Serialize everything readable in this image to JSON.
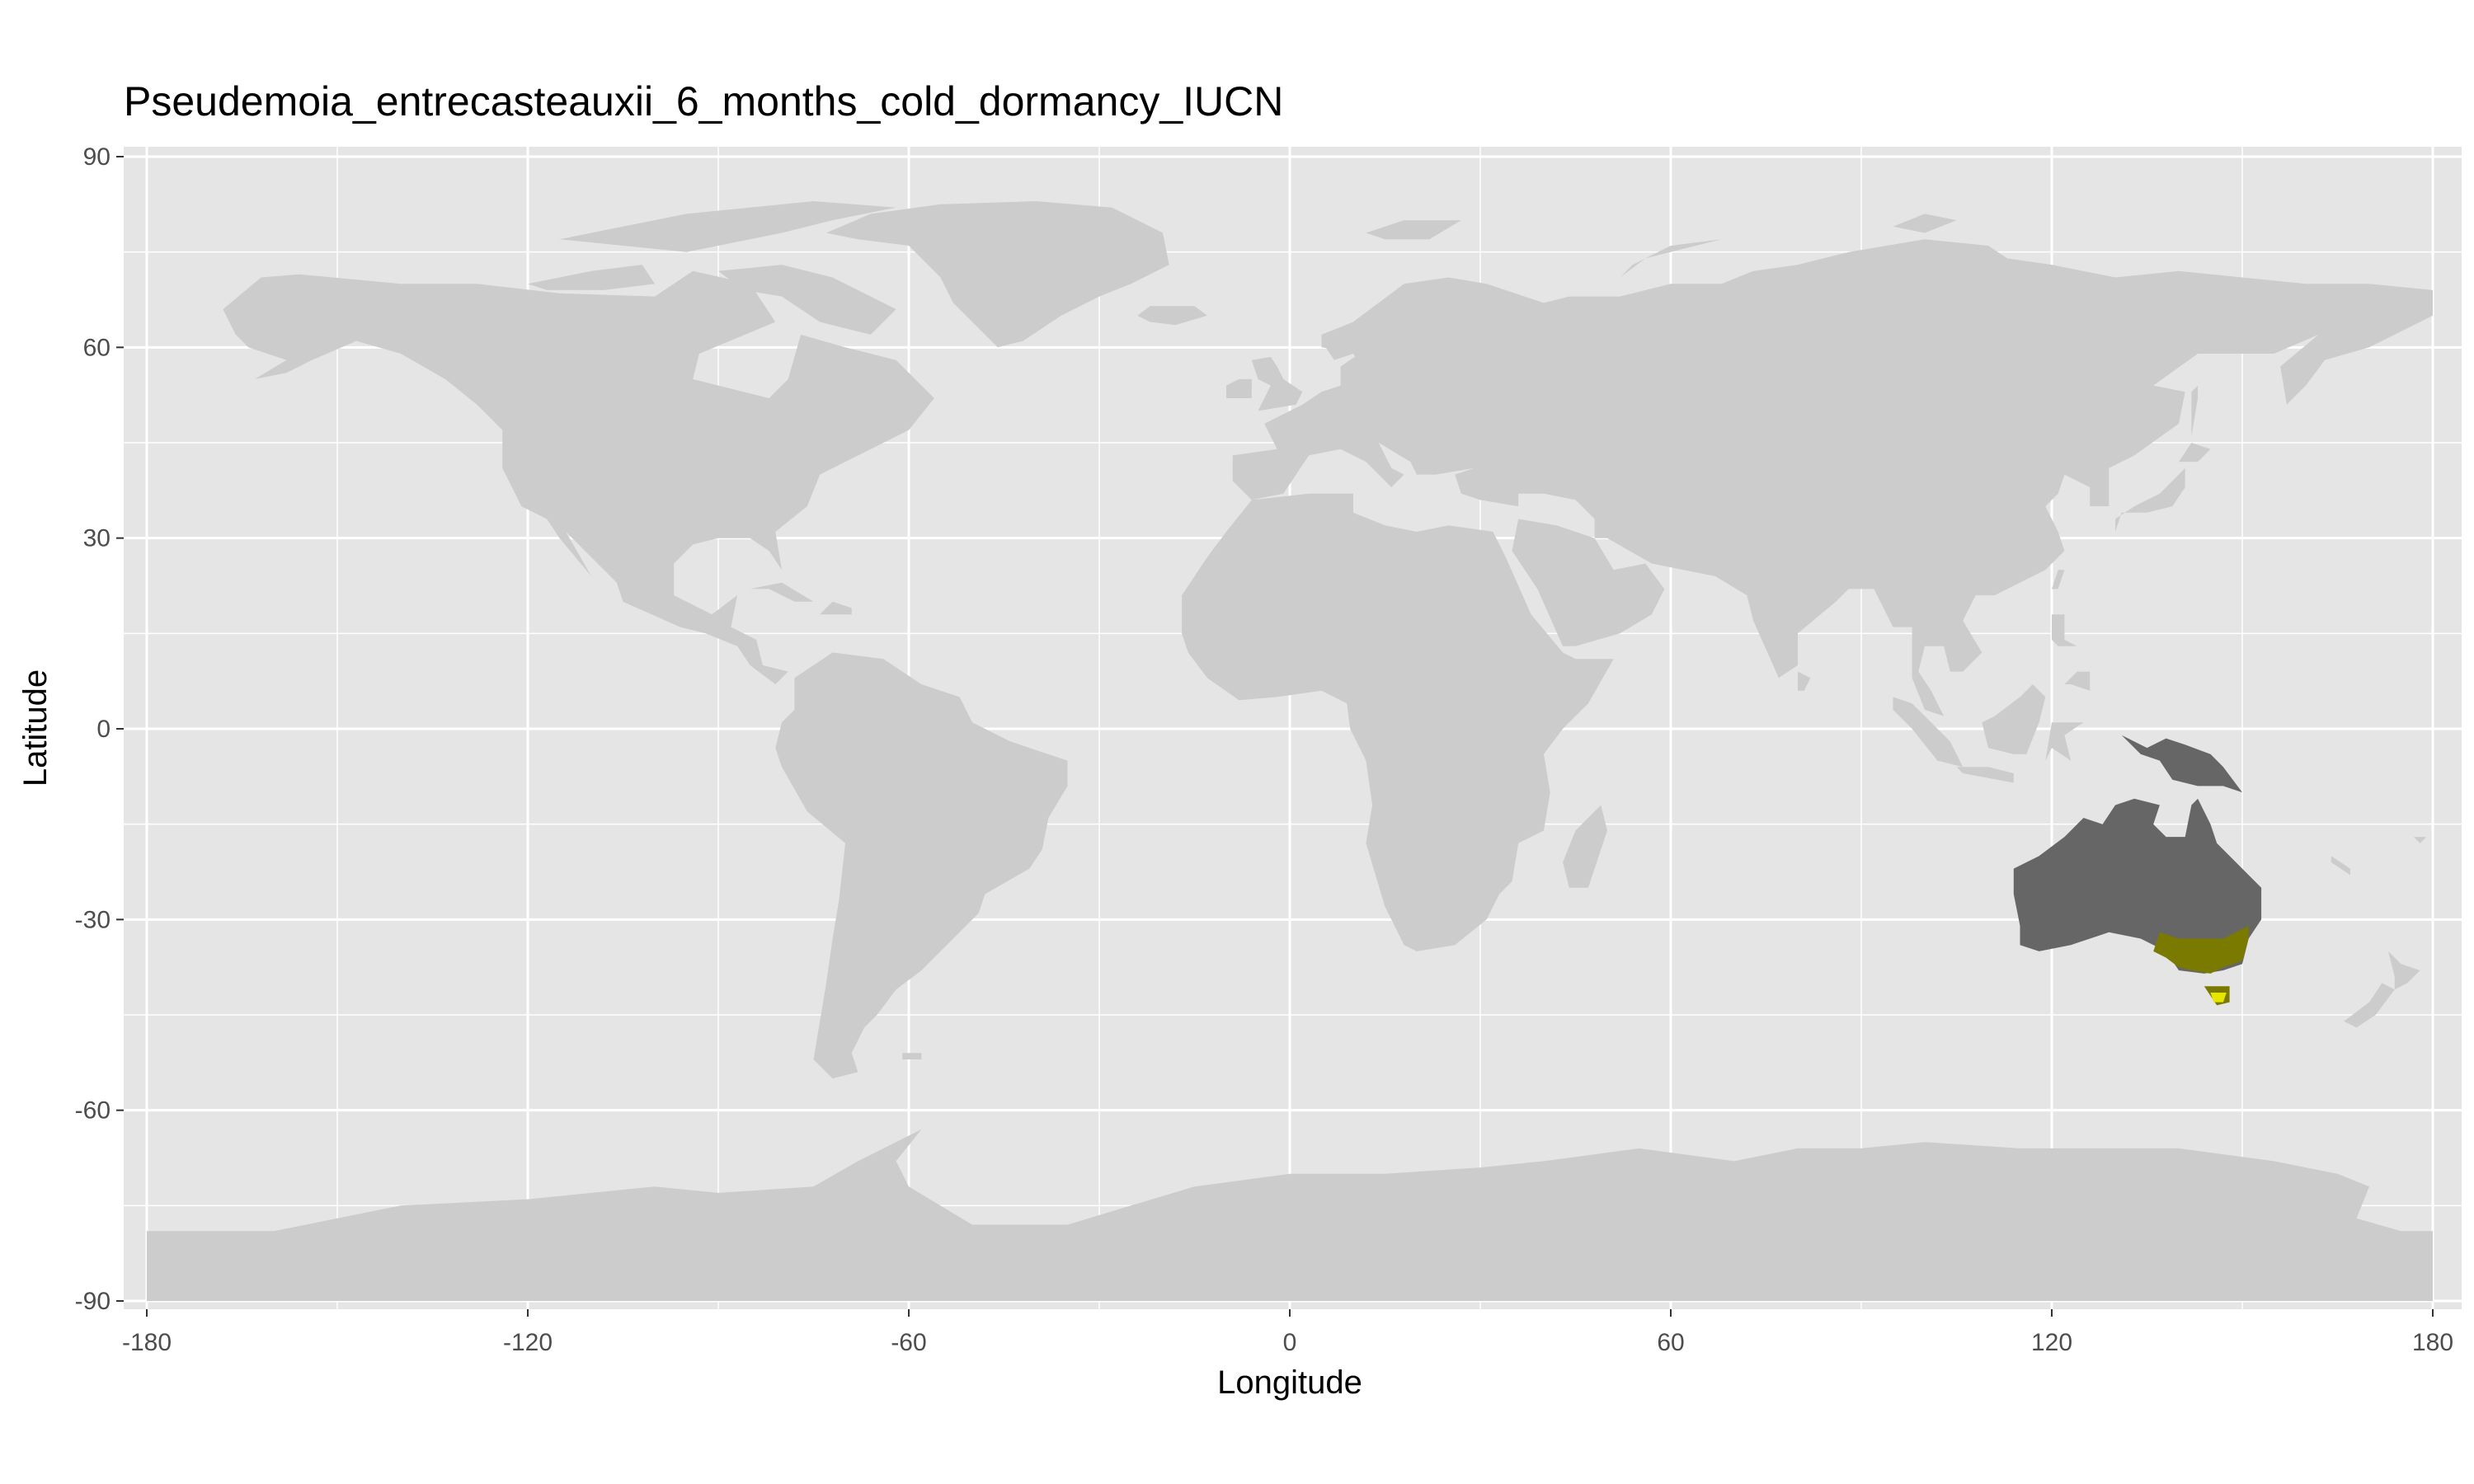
{
  "chart_data": {
    "type": "map",
    "title": "Pseudemoia_entrecasteauxii_6_months_cold_dormancy_IUCN",
    "xlabel": "Longitude",
    "ylabel": "Latitude",
    "xlim": [
      -180,
      180
    ],
    "ylim": [
      -90,
      90
    ],
    "x_ticks": [
      -180,
      -120,
      -60,
      0,
      60,
      120,
      180
    ],
    "y_ticks": [
      90,
      60,
      30,
      0,
      -30,
      -60,
      -90
    ],
    "x_tick_labels": [
      "-180",
      "-120",
      "-60",
      "0",
      "60",
      "120",
      "180"
    ],
    "y_tick_labels": [
      "90",
      "60",
      "30",
      "0",
      "-30",
      "-60",
      "-90"
    ],
    "grid": true,
    "layers": [
      {
        "name": "land",
        "color": "#cccccc"
      },
      {
        "name": "australia_region",
        "color": "#666666"
      },
      {
        "name": "range_suitable",
        "color": "#7a7a00"
      },
      {
        "name": "range_core",
        "color": "#e6e600"
      }
    ],
    "colors": {
      "panel": "#e5e5e5",
      "grid": "#ffffff",
      "land": "#cccccc",
      "australia": "#666666",
      "range_olive": "#7a7a00",
      "range_yellow": "#e6e600"
    }
  }
}
